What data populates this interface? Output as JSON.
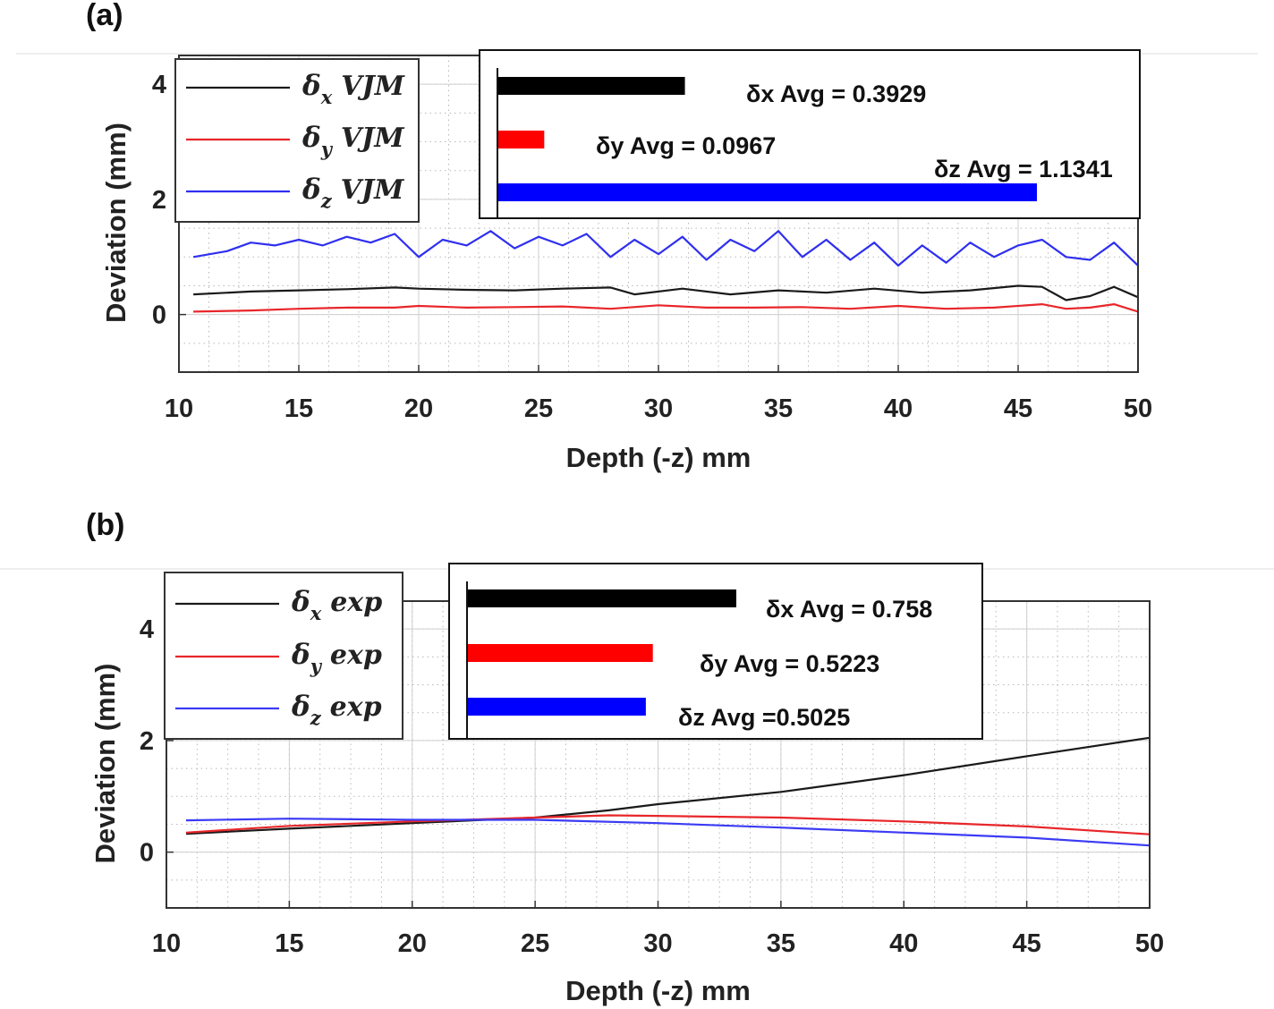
{
  "chart_data": [
    {
      "panel_label": "(a)",
      "type": "line",
      "xlabel": "Depth (-z) mm",
      "ylabel": "Deviation (mm)",
      "xlim": [
        10,
        50
      ],
      "ylim": [
        -1,
        4.5
      ],
      "xticks": [
        "10",
        "15",
        "20",
        "25",
        "30",
        "35",
        "40",
        "45",
        "50"
      ],
      "yticks": [
        "0",
        "2",
        "4"
      ],
      "grid": true,
      "legend_position": "top-left",
      "series": [
        {
          "name": "VJM",
          "symbol": "δ",
          "sub": "x",
          "color": "#1a1a1a",
          "x": [
            10.6,
            13,
            15,
            17,
            19,
            20,
            22,
            24,
            26,
            28,
            29,
            31,
            33,
            35,
            37,
            39,
            41,
            43,
            45,
            46,
            47,
            48,
            49,
            50
          ],
          "y": [
            0.35,
            0.4,
            0.42,
            0.44,
            0.47,
            0.45,
            0.43,
            0.42,
            0.45,
            0.47,
            0.35,
            0.45,
            0.35,
            0.42,
            0.38,
            0.45,
            0.38,
            0.42,
            0.5,
            0.48,
            0.25,
            0.32,
            0.48,
            0.3
          ]
        },
        {
          "name": "VJM",
          "symbol": "δ",
          "sub": "y",
          "color": "#e8262a",
          "x": [
            10.6,
            13,
            15,
            17,
            19,
            20,
            22,
            24,
            26,
            28,
            30,
            32,
            34,
            36,
            38,
            40,
            42,
            44,
            46,
            47,
            48,
            49,
            50
          ],
          "y": [
            0.05,
            0.07,
            0.1,
            0.12,
            0.12,
            0.15,
            0.12,
            0.13,
            0.14,
            0.1,
            0.16,
            0.12,
            0.12,
            0.13,
            0.1,
            0.15,
            0.1,
            0.12,
            0.18,
            0.1,
            0.12,
            0.18,
            0.05
          ]
        },
        {
          "name": "VJM",
          "symbol": "δ",
          "sub": "z",
          "color": "#2f2ff0",
          "x": [
            10.6,
            12,
            13,
            14,
            15,
            16,
            17,
            18,
            19,
            20,
            21,
            22,
            23,
            24,
            25,
            26,
            27,
            28,
            29,
            30,
            31,
            32,
            33,
            34,
            35,
            36,
            37,
            38,
            39,
            40,
            41,
            42,
            43,
            44,
            45,
            46,
            47,
            48,
            49,
            50
          ],
          "y": [
            1.0,
            1.1,
            1.25,
            1.2,
            1.3,
            1.2,
            1.35,
            1.25,
            1.4,
            1.0,
            1.3,
            1.2,
            1.45,
            1.15,
            1.35,
            1.2,
            1.4,
            1.0,
            1.3,
            1.05,
            1.35,
            0.95,
            1.3,
            1.1,
            1.45,
            1.0,
            1.3,
            0.95,
            1.25,
            0.85,
            1.2,
            0.9,
            1.25,
            1.0,
            1.2,
            1.3,
            1.0,
            0.95,
            1.25,
            0.85
          ]
        }
      ],
      "avg_bars": [
        {
          "label": "δx Avg = 0.3929",
          "value": 0.3929,
          "color": "#000000"
        },
        {
          "label": "δy Avg = 0.0967",
          "value": 0.0967,
          "color": "#ff0000"
        },
        {
          "label": "δz Avg = 1.1341",
          "value": 1.1341,
          "color": "#0000ff"
        }
      ]
    },
    {
      "panel_label": "(b)",
      "type": "line",
      "xlabel": "Depth (-z) mm",
      "ylabel": "Deviation (mm)",
      "xlim": [
        10,
        50
      ],
      "ylim": [
        -1,
        4.5
      ],
      "xticks": [
        "10",
        "15",
        "20",
        "25",
        "30",
        "35",
        "40",
        "45",
        "50"
      ],
      "yticks": [
        "0",
        "2",
        "4"
      ],
      "grid": true,
      "legend_position": "top-left",
      "series": [
        {
          "name": "exp",
          "symbol": "δ",
          "sub": "x",
          "color": "#1a1a1a",
          "x": [
            10.8,
            15,
            20,
            25,
            28,
            30,
            35,
            40,
            45,
            50
          ],
          "y": [
            0.33,
            0.42,
            0.52,
            0.62,
            0.75,
            0.86,
            1.08,
            1.38,
            1.72,
            2.05
          ]
        },
        {
          "name": "exp",
          "symbol": "δ",
          "sub": "y",
          "color": "#e8262a",
          "x": [
            10.8,
            15,
            20,
            25,
            28,
            30,
            35,
            40,
            45,
            50
          ],
          "y": [
            0.35,
            0.47,
            0.55,
            0.62,
            0.66,
            0.65,
            0.62,
            0.55,
            0.46,
            0.32
          ]
        },
        {
          "name": "exp",
          "symbol": "δ",
          "sub": "z",
          "color": "#3b3bf5",
          "x": [
            10.8,
            15,
            20,
            25,
            30,
            35,
            40,
            45,
            50
          ],
          "y": [
            0.57,
            0.6,
            0.58,
            0.58,
            0.52,
            0.44,
            0.35,
            0.26,
            0.12
          ]
        }
      ],
      "avg_bars": [
        {
          "label": "δx Avg = 0.758",
          "value": 0.758,
          "color": "#000000"
        },
        {
          "label": "δy Avg = 0.5223",
          "value": 0.5223,
          "color": "#ff0000"
        },
        {
          "label": "δz Avg =0.5025",
          "value": 0.5025,
          "color": "#0000ff"
        }
      ]
    }
  ]
}
